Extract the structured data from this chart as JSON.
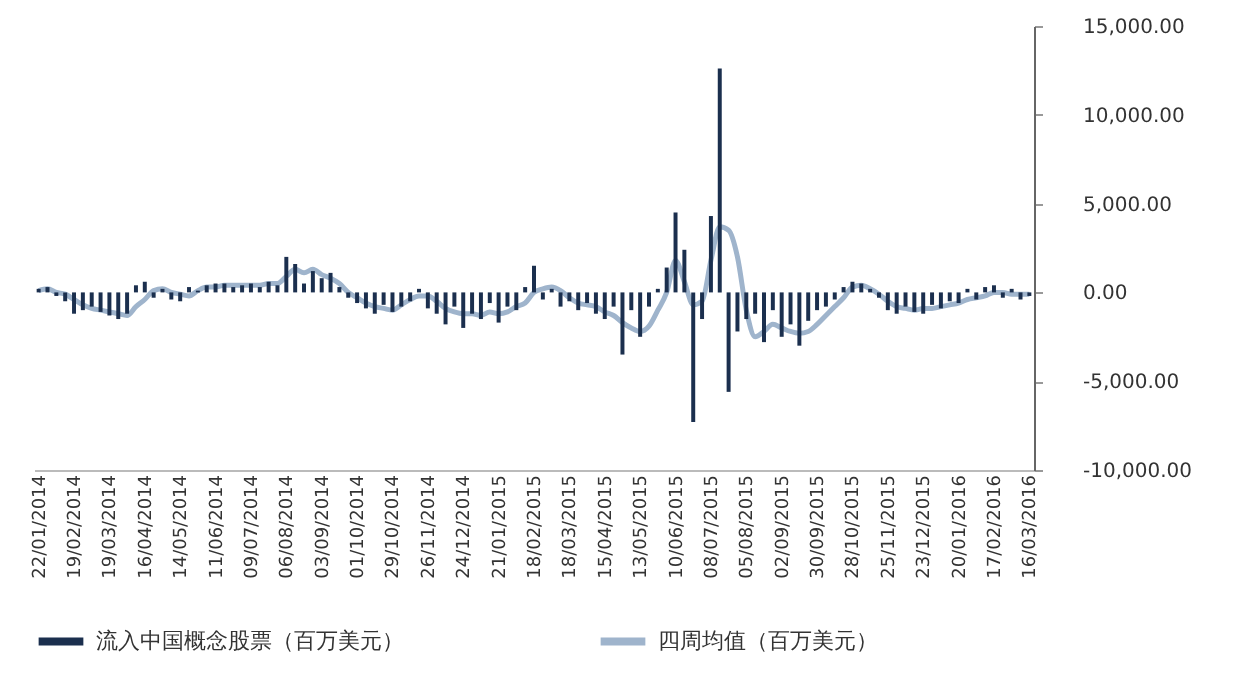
{
  "chart_data": {
    "type": "bar",
    "categories": [
      "22/01/2014",
      null,
      null,
      null,
      "19/02/2014",
      null,
      null,
      null,
      "19/03/2014",
      null,
      null,
      null,
      "16/04/2014",
      null,
      null,
      null,
      "14/05/2014",
      null,
      null,
      null,
      "11/06/2014",
      null,
      null,
      null,
      "09/07/2014",
      null,
      null,
      null,
      "06/08/2014",
      null,
      null,
      null,
      "03/09/2014",
      null,
      null,
      null,
      "01/10/2014",
      null,
      null,
      null,
      "29/10/2014",
      null,
      null,
      null,
      "26/11/2014",
      null,
      null,
      null,
      "24/12/2014",
      null,
      null,
      null,
      "21/01/2015",
      null,
      null,
      null,
      "18/02/2015",
      null,
      null,
      null,
      "18/03/2015",
      null,
      null,
      null,
      "15/04/2015",
      null,
      null,
      null,
      "13/05/2015",
      null,
      null,
      null,
      "10/06/2015",
      null,
      null,
      null,
      "08/07/2015",
      null,
      null,
      null,
      "05/08/2015",
      null,
      null,
      null,
      "02/09/2015",
      null,
      null,
      null,
      "30/09/2015",
      null,
      null,
      null,
      "28/10/2015",
      null,
      null,
      null,
      "25/11/2015",
      null,
      null,
      null,
      "23/12/2015",
      null,
      null,
      null,
      "20/01/2016",
      null,
      null,
      null,
      "17/02/2016",
      null,
      null,
      null,
      "16/03/2016"
    ],
    "series": [
      {
        "name": "流入中国概念股票（百万美元）",
        "color": "#1b2f4e",
        "values": [
          200,
          300,
          -200,
          -500,
          -1200,
          -1000,
          -800,
          -1100,
          -1300,
          -1500,
          -1200,
          400,
          600,
          -300,
          200,
          -400,
          -500,
          300,
          100,
          400,
          500,
          500,
          300,
          400,
          500,
          300,
          600,
          400,
          2000,
          1600,
          500,
          1200,
          800,
          1100,
          300,
          -300,
          -600,
          -900,
          -1200,
          -700,
          -1100,
          -800,
          -500,
          200,
          -900,
          -1200,
          -1800,
          -800,
          -2000,
          -1200,
          -1500,
          -600,
          -1700,
          -800,
          -1000,
          300,
          1500,
          -400,
          200,
          -800,
          -500,
          -1000,
          -600,
          -1200,
          -1500,
          -800,
          -3500,
          -1000,
          -2500,
          -800,
          200,
          1400,
          4500,
          2400,
          -7300,
          -1500,
          4300,
          12600,
          -5600,
          -2200,
          -1500,
          -1200,
          -2800,
          -1000,
          -2500,
          -1800,
          -3000,
          -1600,
          -1000,
          -800,
          -400,
          300,
          600,
          500,
          200,
          -300,
          -1000,
          -1200,
          -800,
          -1100,
          -1200,
          -700,
          -900,
          -500,
          -600,
          200,
          -400,
          300,
          400,
          -300,
          200,
          -400,
          -200
        ]
      },
      {
        "name": "四周均值（百万美元）",
        "type": "line",
        "color": "#9fb4cc",
        "values": [
          100,
          200,
          0,
          -100,
          -400,
          -700,
          -900,
          -1000,
          -1100,
          -1200,
          -1300,
          -800,
          -400,
          100,
          200,
          0,
          -100,
          -200,
          100,
          300,
          300,
          400,
          400,
          400,
          400,
          400,
          500,
          500,
          900,
          1300,
          1100,
          1300,
          1000,
          800,
          500,
          0,
          -300,
          -600,
          -800,
          -900,
          -1000,
          -700,
          -400,
          -200,
          -200,
          -500,
          -900,
          -1100,
          -1200,
          -1200,
          -1300,
          -1100,
          -1200,
          -1100,
          -800,
          -600,
          0,
          200,
          300,
          100,
          -300,
          -600,
          -700,
          -800,
          -1100,
          -1300,
          -1700,
          -2000,
          -2200,
          -1900,
          -1000,
          0,
          1800,
          600,
          -700,
          -500,
          1800,
          3700,
          3500,
          2000,
          -1000,
          -2500,
          -2200,
          -1800,
          -2000,
          -2200,
          -2300,
          -2200,
          -1800,
          -1300,
          -800,
          -300,
          300,
          400,
          200,
          -100,
          -500,
          -800,
          -900,
          -1000,
          -900,
          -900,
          -800,
          -700,
          -600,
          -400,
          -300,
          -200,
          0,
          0,
          -100,
          -100,
          -100
        ]
      }
    ],
    "ylim": [
      -10000,
      15000
    ],
    "yticks": [
      {
        "value": -10000,
        "label": "-10,000.00"
      },
      {
        "value": -5000,
        "label": "-5,000.00"
      },
      {
        "value": 0,
        "label": "0.00"
      },
      {
        "value": 5000,
        "label": "5,000.00"
      },
      {
        "value": 10000,
        "label": "10,000.00"
      },
      {
        "value": 15000,
        "label": "15,000.00"
      }
    ],
    "legend": "bottom"
  }
}
